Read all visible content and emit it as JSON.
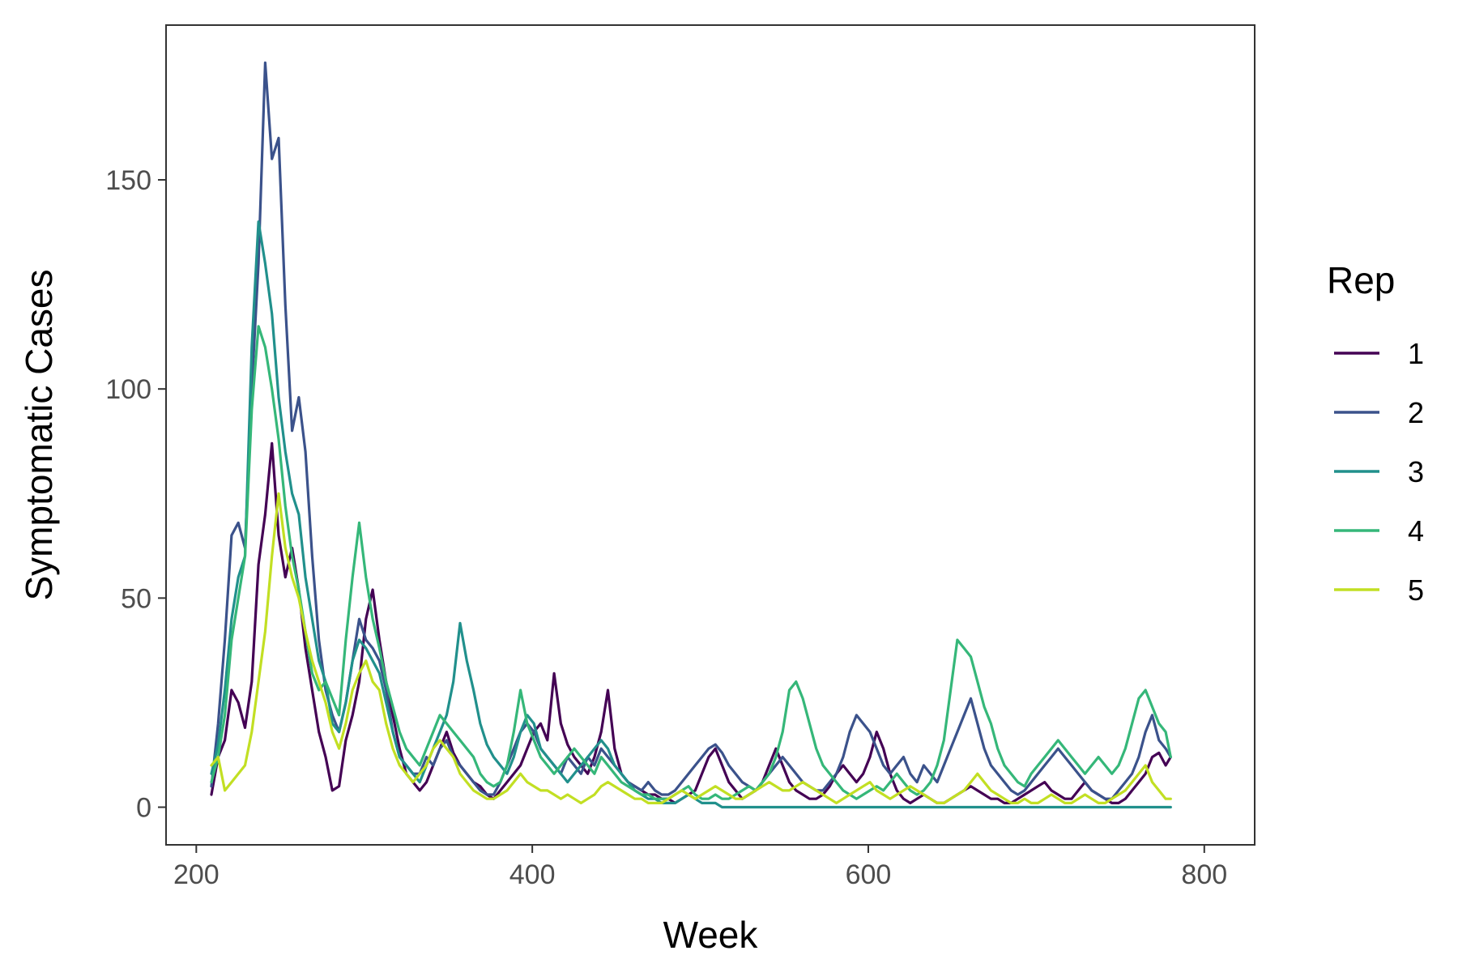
{
  "chart_data": {
    "type": "line",
    "title": "",
    "xlabel": "Week",
    "ylabel": "Symptomatic Cases",
    "xlim": [
      182,
      830
    ],
    "ylim": [
      -9,
      187
    ],
    "xticks": [
      200,
      400,
      600,
      800
    ],
    "yticks": [
      0,
      50,
      100,
      150
    ],
    "grid": false,
    "legend": {
      "title": "Rep",
      "placement": "right"
    },
    "series": [
      {
        "name": "1",
        "color": "#440154",
        "x": [
          209,
          213,
          217,
          221,
          225,
          229,
          233,
          237,
          241,
          245,
          249,
          253,
          257,
          261,
          265,
          269,
          273,
          277,
          281,
          285,
          289,
          293,
          297,
          301,
          305,
          309,
          313,
          317,
          321,
          325,
          329,
          333,
          337,
          341,
          345,
          349,
          353,
          357,
          361,
          365,
          369,
          373,
          377,
          381,
          385,
          389,
          393,
          397,
          401,
          405,
          409,
          413,
          417,
          421,
          425,
          429,
          433,
          437,
          441,
          445,
          449,
          453,
          457,
          461,
          465,
          469,
          473,
          477,
          481,
          485,
          489,
          493,
          497,
          501,
          505,
          509,
          513,
          517,
          521,
          525,
          529,
          533,
          537,
          541,
          545,
          549,
          553,
          557,
          561,
          565,
          569,
          573,
          577,
          581,
          585,
          589,
          593,
          597,
          601,
          605,
          609,
          613,
          617,
          621,
          625,
          629,
          633,
          637,
          641,
          645,
          649,
          653,
          657,
          661,
          665,
          669,
          673,
          677,
          681,
          685,
          689,
          693,
          697,
          701,
          705,
          709,
          713,
          717,
          721,
          725,
          729,
          733,
          737,
          741,
          745,
          749,
          753,
          757,
          761,
          765,
          769,
          773,
          777,
          780
        ],
        "values": [
          3,
          12,
          16,
          28,
          25,
          19,
          30,
          58,
          70,
          87,
          65,
          55,
          62,
          52,
          38,
          28,
          18,
          12,
          4,
          5,
          16,
          22,
          30,
          45,
          52,
          40,
          30,
          22,
          14,
          8,
          6,
          4,
          6,
          10,
          14,
          18,
          13,
          10,
          8,
          6,
          5,
          3,
          2,
          4,
          6,
          8,
          10,
          14,
          18,
          20,
          16,
          32,
          20,
          15,
          12,
          10,
          8,
          12,
          18,
          28,
          14,
          8,
          6,
          5,
          4,
          3,
          3,
          2,
          2,
          1,
          2,
          3,
          4,
          8,
          12,
          14,
          10,
          6,
          4,
          2,
          3,
          4,
          6,
          10,
          14,
          10,
          6,
          4,
          3,
          2,
          2,
          3,
          5,
          8,
          10,
          8,
          6,
          8,
          12,
          18,
          14,
          8,
          4,
          2,
          1,
          2,
          3,
          2,
          1,
          1,
          2,
          3,
          4,
          5,
          4,
          3,
          2,
          2,
          1,
          1,
          2,
          3,
          4,
          5,
          6,
          4,
          3,
          2,
          2,
          4,
          6,
          4,
          3,
          2,
          1,
          1,
          2,
          4,
          6,
          8,
          12,
          13,
          10,
          12
        ]
      },
      {
        "name": "2",
        "color": "#3b528b",
        "x": [
          209,
          213,
          217,
          221,
          225,
          229,
          233,
          237,
          241,
          245,
          249,
          253,
          257,
          261,
          265,
          269,
          273,
          277,
          281,
          285,
          289,
          293,
          297,
          301,
          305,
          309,
          313,
          317,
          321,
          325,
          329,
          333,
          337,
          341,
          345,
          349,
          353,
          357,
          361,
          365,
          369,
          373,
          377,
          381,
          385,
          389,
          393,
          397,
          401,
          405,
          409,
          413,
          417,
          421,
          425,
          429,
          433,
          437,
          441,
          445,
          449,
          453,
          457,
          461,
          465,
          469,
          473,
          477,
          481,
          485,
          489,
          493,
          497,
          501,
          505,
          509,
          513,
          517,
          521,
          525,
          529,
          533,
          537,
          541,
          545,
          549,
          553,
          557,
          561,
          565,
          569,
          573,
          577,
          581,
          585,
          589,
          593,
          597,
          601,
          605,
          609,
          613,
          617,
          621,
          625,
          629,
          633,
          637,
          641,
          645,
          649,
          653,
          657,
          661,
          665,
          669,
          673,
          677,
          681,
          685,
          689,
          693,
          697,
          701,
          705,
          709,
          713,
          717,
          721,
          725,
          729,
          733,
          737,
          741,
          745,
          749,
          753,
          757,
          761,
          765,
          769,
          773,
          777,
          780
        ],
        "values": [
          5,
          20,
          40,
          65,
          68,
          62,
          100,
          130,
          178,
          155,
          160,
          120,
          90,
          98,
          85,
          60,
          40,
          28,
          22,
          18,
          25,
          35,
          45,
          40,
          38,
          35,
          28,
          18,
          12,
          10,
          8,
          8,
          12,
          10,
          14,
          16,
          12,
          10,
          8,
          6,
          4,
          3,
          3,
          6,
          10,
          14,
          18,
          20,
          18,
          14,
          12,
          10,
          8,
          12,
          10,
          8,
          12,
          10,
          14,
          12,
          10,
          8,
          6,
          5,
          4,
          6,
          4,
          3,
          3,
          4,
          6,
          8,
          10,
          12,
          14,
          15,
          13,
          10,
          8,
          6,
          5,
          4,
          6,
          8,
          10,
          12,
          10,
          8,
          6,
          5,
          4,
          4,
          6,
          8,
          12,
          18,
          22,
          20,
          18,
          14,
          10,
          8,
          10,
          12,
          8,
          6,
          10,
          8,
          6,
          10,
          14,
          18,
          22,
          26,
          20,
          14,
          10,
          8,
          6,
          4,
          3,
          4,
          6,
          8,
          10,
          12,
          14,
          12,
          10,
          8,
          6,
          4,
          3,
          2,
          2,
          4,
          6,
          8,
          12,
          18,
          22,
          16,
          14,
          12
        ]
      },
      {
        "name": "3",
        "color": "#21908c",
        "x": [
          209,
          213,
          217,
          221,
          225,
          229,
          233,
          237,
          241,
          245,
          249,
          253,
          257,
          261,
          265,
          269,
          273,
          277,
          281,
          285,
          289,
          293,
          297,
          301,
          305,
          309,
          313,
          317,
          321,
          325,
          329,
          333,
          337,
          341,
          345,
          349,
          353,
          357,
          361,
          365,
          369,
          373,
          377,
          381,
          385,
          389,
          393,
          397,
          401,
          405,
          409,
          413,
          417,
          421,
          425,
          429,
          433,
          437,
          441,
          445,
          449,
          453,
          457,
          461,
          465,
          469,
          473,
          477,
          481,
          485,
          489,
          493,
          497,
          501,
          505,
          509,
          513,
          517,
          521,
          525,
          780
        ],
        "values": [
          8,
          15,
          28,
          45,
          55,
          60,
          110,
          140,
          130,
          118,
          98,
          85,
          75,
          70,
          55,
          45,
          35,
          30,
          20,
          18,
          25,
          35,
          40,
          38,
          35,
          32,
          25,
          18,
          12,
          10,
          8,
          6,
          10,
          14,
          18,
          22,
          30,
          44,
          35,
          28,
          20,
          15,
          12,
          10,
          8,
          12,
          18,
          22,
          20,
          14,
          12,
          10,
          8,
          6,
          8,
          10,
          12,
          14,
          16,
          14,
          10,
          8,
          6,
          4,
          3,
          2,
          2,
          1,
          1,
          1,
          2,
          3,
          2,
          1,
          1,
          1,
          0,
          0,
          0,
          0,
          0
        ]
      },
      {
        "name": "4",
        "color": "#35b779",
        "x": [
          209,
          213,
          217,
          221,
          225,
          229,
          233,
          237,
          241,
          245,
          249,
          253,
          257,
          261,
          265,
          269,
          273,
          277,
          281,
          285,
          289,
          293,
          297,
          301,
          305,
          309,
          313,
          317,
          321,
          325,
          329,
          333,
          337,
          341,
          345,
          349,
          353,
          357,
          361,
          365,
          369,
          373,
          377,
          381,
          385,
          389,
          393,
          397,
          401,
          405,
          409,
          413,
          417,
          421,
          425,
          429,
          433,
          437,
          441,
          445,
          449,
          453,
          457,
          461,
          465,
          469,
          473,
          477,
          481,
          485,
          489,
          493,
          497,
          501,
          505,
          509,
          513,
          517,
          521,
          525,
          529,
          533,
          537,
          541,
          545,
          549,
          553,
          557,
          561,
          565,
          569,
          573,
          577,
          581,
          585,
          589,
          593,
          597,
          601,
          605,
          609,
          613,
          617,
          621,
          625,
          629,
          633,
          637,
          641,
          645,
          649,
          653,
          657,
          661,
          665,
          669,
          673,
          677,
          681,
          685,
          689,
          693,
          697,
          701,
          705,
          709,
          713,
          717,
          721,
          725,
          729,
          733,
          737,
          741,
          745,
          749,
          753,
          757,
          761,
          765,
          769,
          773,
          777,
          780
        ],
        "values": [
          6,
          12,
          22,
          40,
          50,
          60,
          95,
          115,
          110,
          100,
          88,
          72,
          60,
          52,
          42,
          32,
          28,
          30,
          26,
          22,
          40,
          55,
          68,
          55,
          45,
          38,
          30,
          24,
          18,
          14,
          12,
          10,
          14,
          18,
          22,
          20,
          18,
          16,
          14,
          12,
          8,
          6,
          5,
          6,
          10,
          18,
          28,
          20,
          16,
          12,
          10,
          8,
          10,
          12,
          14,
          12,
          10,
          8,
          12,
          10,
          8,
          6,
          5,
          4,
          3,
          3,
          2,
          2,
          2,
          3,
          4,
          5,
          3,
          2,
          2,
          3,
          2,
          2,
          3,
          4,
          5,
          4,
          6,
          8,
          12,
          18,
          28,
          30,
          26,
          20,
          14,
          10,
          8,
          6,
          4,
          3,
          2,
          3,
          4,
          5,
          4,
          6,
          8,
          6,
          4,
          3,
          4,
          6,
          10,
          16,
          28,
          40,
          38,
          36,
          30,
          24,
          20,
          14,
          10,
          8,
          6,
          5,
          8,
          10,
          12,
          14,
          16,
          14,
          12,
          10,
          8,
          10,
          12,
          10,
          8,
          10,
          14,
          20,
          26,
          28,
          24,
          20,
          18,
          12
        ]
      },
      {
        "name": "5",
        "color": "#c2df23",
        "x": [
          209,
          213,
          217,
          221,
          225,
          229,
          233,
          237,
          241,
          245,
          249,
          253,
          257,
          261,
          265,
          269,
          273,
          277,
          281,
          285,
          289,
          293,
          297,
          301,
          305,
          309,
          313,
          317,
          321,
          325,
          329,
          333,
          337,
          341,
          345,
          349,
          353,
          357,
          361,
          365,
          369,
          373,
          377,
          381,
          385,
          389,
          393,
          397,
          401,
          405,
          409,
          413,
          417,
          421,
          425,
          429,
          433,
          437,
          441,
          445,
          449,
          453,
          457,
          461,
          465,
          469,
          473,
          477,
          481,
          485,
          489,
          493,
          497,
          501,
          505,
          509,
          513,
          517,
          521,
          525,
          529,
          533,
          537,
          541,
          545,
          549,
          553,
          557,
          561,
          565,
          569,
          573,
          577,
          581,
          585,
          589,
          593,
          597,
          601,
          605,
          609,
          613,
          617,
          621,
          625,
          629,
          633,
          637,
          641,
          645,
          649,
          653,
          657,
          661,
          665,
          669,
          673,
          677,
          681,
          685,
          689,
          693,
          697,
          701,
          705,
          709,
          713,
          717,
          721,
          725,
          729,
          733,
          737,
          741,
          745,
          749,
          753,
          757,
          761,
          765,
          769,
          773,
          777,
          780
        ],
        "values": [
          10,
          12,
          4,
          6,
          8,
          10,
          18,
          30,
          42,
          60,
          75,
          62,
          55,
          50,
          42,
          35,
          30,
          25,
          18,
          14,
          20,
          28,
          32,
          35,
          30,
          28,
          20,
          14,
          10,
          8,
          6,
          8,
          10,
          14,
          16,
          14,
          12,
          8,
          6,
          4,
          3,
          2,
          2,
          3,
          4,
          6,
          8,
          6,
          5,
          4,
          4,
          3,
          2,
          3,
          2,
          1,
          2,
          3,
          5,
          6,
          5,
          4,
          3,
          2,
          2,
          1,
          1,
          1,
          2,
          3,
          4,
          3,
          2,
          3,
          4,
          5,
          4,
          3,
          2,
          2,
          3,
          4,
          5,
          6,
          5,
          4,
          4,
          5,
          6,
          5,
          4,
          3,
          2,
          1,
          2,
          3,
          4,
          5,
          6,
          4,
          3,
          2,
          3,
          4,
          5,
          4,
          3,
          2,
          1,
          1,
          2,
          3,
          4,
          6,
          8,
          6,
          4,
          3,
          2,
          1,
          1,
          2,
          1,
          1,
          2,
          3,
          2,
          1,
          1,
          2,
          3,
          2,
          1,
          1,
          2,
          3,
          4,
          6,
          8,
          10,
          6,
          4,
          2,
          2
        ]
      }
    ]
  }
}
